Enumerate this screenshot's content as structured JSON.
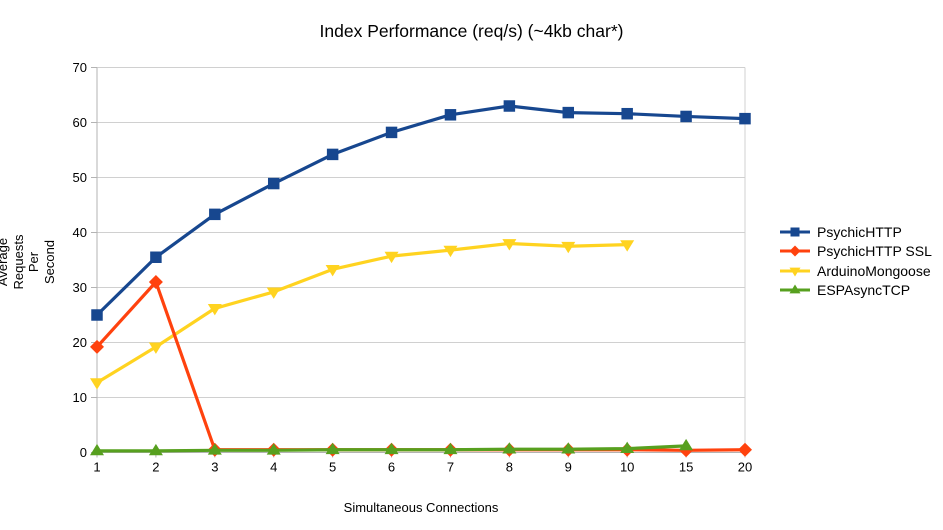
{
  "chart_data": {
    "type": "line",
    "title": "Index Performance (req/s) (~4kb char*)",
    "xlabel": "Simultaneous Connections",
    "ylabel": "Average\nRequests Per Second",
    "categories": [
      "1",
      "2",
      "3",
      "4",
      "5",
      "6",
      "7",
      "8",
      "9",
      "10",
      "15",
      "20"
    ],
    "ylim": [
      0,
      70
    ],
    "ytick_step": 10,
    "grid": "horizontal",
    "legend_position": "right",
    "axis_color": "#b3b3b3",
    "grid_color": "#d0d0d0",
    "series": [
      {
        "name": "PsychicHTTP",
        "color": "#17478f",
        "marker": "square",
        "values": [
          25.0,
          35.5,
          43.3,
          48.9,
          54.2,
          58.2,
          61.4,
          63.0,
          61.8,
          61.6,
          61.1,
          60.7
        ]
      },
      {
        "name": "PsychicHTTP SSL",
        "color": "#ff420e",
        "marker": "diamond",
        "values": [
          19.2,
          31.0,
          0.5,
          0.5,
          0.5,
          0.5,
          0.5,
          0.5,
          0.5,
          0.5,
          0.4,
          0.5
        ]
      },
      {
        "name": "ArduinoMongoose",
        "color": "#ffd320",
        "marker": "triangle-down",
        "values": [
          12.7,
          19.2,
          26.2,
          29.2,
          33.3,
          35.7,
          36.8,
          38.0,
          37.5,
          37.8,
          null,
          null
        ]
      },
      {
        "name": "ESPAsyncTCP",
        "color": "#57a01f",
        "marker": "triangle-up",
        "values": [
          0.3,
          0.3,
          0.4,
          0.4,
          0.5,
          0.5,
          0.5,
          0.6,
          0.6,
          0.7,
          1.2,
          null
        ]
      }
    ],
    "z_order": [
      2,
      0,
      1,
      3
    ]
  }
}
